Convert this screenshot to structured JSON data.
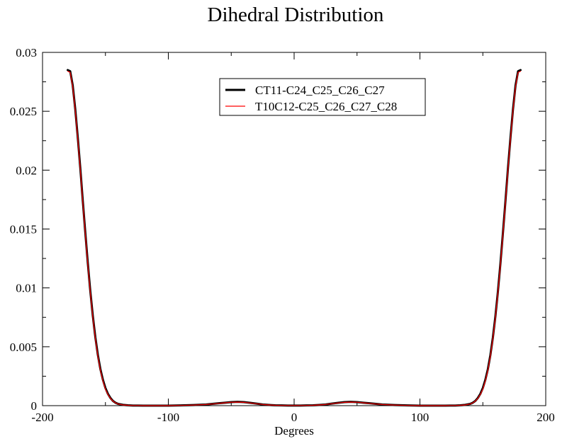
{
  "chart_data": {
    "type": "line",
    "title": "Dihedral Distribution",
    "xlabel": "Degrees",
    "ylabel": "",
    "xlim": [
      -200,
      200
    ],
    "ylim": [
      0,
      0.03
    ],
    "x_ticks": [
      -200,
      -100,
      0,
      100,
      200
    ],
    "x_tick_labels": [
      "-200",
      "-100",
      "0",
      "100",
      "200"
    ],
    "y_ticks": [
      0,
      0.005,
      0.01,
      0.015,
      0.02,
      0.025,
      0.03
    ],
    "y_tick_labels": [
      "0",
      "0.005",
      "0.01",
      "0.015",
      "0.02",
      "0.025",
      "0.03"
    ],
    "grid": false,
    "legend_position": "top-center",
    "series": [
      {
        "name": "CT11-C24_C25_C26_C27",
        "color": "#000000",
        "x": [
          -180,
          -178,
          -176,
          -174,
          -172,
          -170,
          -168,
          -166,
          -164,
          -162,
          -160,
          -158,
          -156,
          -154,
          -152,
          -150,
          -148,
          -146,
          -144,
          -142,
          -140,
          -136,
          -132,
          -128,
          -124,
          -120,
          -115,
          -110,
          -100,
          -90,
          -80,
          -70,
          -65,
          -60,
          -55,
          -50,
          -45,
          -40,
          -35,
          -30,
          -25,
          -20,
          -15,
          -10,
          -5,
          0,
          5,
          10,
          15,
          20,
          25,
          30,
          35,
          40,
          45,
          50,
          55,
          60,
          65,
          70,
          80,
          90,
          100,
          110,
          115,
          120,
          124,
          128,
          132,
          136,
          140,
          142,
          144,
          146,
          148,
          150,
          152,
          154,
          156,
          158,
          160,
          162,
          164,
          166,
          168,
          170,
          172,
          174,
          176,
          178,
          180
        ],
        "y": [
          0.0285,
          0.0284,
          0.0272,
          0.0252,
          0.0228,
          0.0202,
          0.0174,
          0.0147,
          0.0121,
          0.0097,
          0.0076,
          0.0058,
          0.0043,
          0.0031,
          0.0022,
          0.0015,
          0.001,
          0.00065,
          0.0004,
          0.00025,
          0.00015,
          7e-05,
          3e-05,
          1e-05,
          1e-05,
          0.0,
          0.0,
          0.0,
          0.0,
          2e-05,
          5e-05,
          0.0001,
          0.00015,
          0.0002,
          0.00025,
          0.0003,
          0.00032,
          0.0003,
          0.00024,
          0.00017,
          0.0001,
          6e-05,
          3e-05,
          2e-05,
          1e-05,
          1e-05,
          1e-05,
          2e-05,
          3e-05,
          6e-05,
          0.0001,
          0.00017,
          0.00024,
          0.0003,
          0.00032,
          0.0003,
          0.00025,
          0.0002,
          0.00015,
          0.0001,
          5e-05,
          2e-05,
          0.0,
          0.0,
          0.0,
          0.0,
          1e-05,
          1e-05,
          3e-05,
          7e-05,
          0.00015,
          0.00025,
          0.0004,
          0.00065,
          0.001,
          0.0015,
          0.0022,
          0.0031,
          0.0043,
          0.0058,
          0.0076,
          0.0097,
          0.0121,
          0.0147,
          0.0174,
          0.0202,
          0.0228,
          0.0252,
          0.0272,
          0.0284,
          0.0285
        ]
      },
      {
        "name": "T10C12-C25_C26_C27_C28",
        "color": "#ff0000",
        "x": [
          -180,
          -178,
          -176,
          -174,
          -172,
          -170,
          -168,
          -166,
          -164,
          -162,
          -160,
          -158,
          -156,
          -154,
          -152,
          -150,
          -148,
          -146,
          -144,
          -142,
          -140,
          -136,
          -132,
          -128,
          -124,
          -120,
          -115,
          -110,
          -100,
          -90,
          -80,
          -70,
          -65,
          -60,
          -55,
          -50,
          -45,
          -40,
          -35,
          -30,
          -25,
          -20,
          -15,
          -10,
          -5,
          0,
          5,
          10,
          15,
          20,
          25,
          30,
          35,
          40,
          45,
          50,
          55,
          60,
          65,
          70,
          80,
          90,
          100,
          110,
          115,
          120,
          124,
          128,
          132,
          136,
          140,
          142,
          144,
          146,
          148,
          150,
          152,
          154,
          156,
          158,
          160,
          162,
          164,
          166,
          168,
          170,
          172,
          174,
          176,
          178,
          180
        ],
        "y": [
          0.0284,
          0.0283,
          0.0271,
          0.0251,
          0.0227,
          0.0201,
          0.0173,
          0.0146,
          0.012,
          0.0096,
          0.0075,
          0.0057,
          0.0042,
          0.003,
          0.0021,
          0.0014,
          0.00095,
          0.00062,
          0.00038,
          0.00024,
          0.00014,
          6e-05,
          3e-05,
          1e-05,
          1e-05,
          0.0,
          0.0,
          0.0,
          0.0,
          2e-05,
          5e-05,
          0.0001,
          0.00014,
          0.00019,
          0.00024,
          0.00029,
          0.0003,
          0.00028,
          0.00023,
          0.00016,
          0.0001,
          6e-05,
          3e-05,
          2e-05,
          1e-05,
          1e-05,
          1e-05,
          2e-05,
          3e-05,
          6e-05,
          0.0001,
          0.00016,
          0.00023,
          0.00028,
          0.0003,
          0.00029,
          0.00024,
          0.00019,
          0.00014,
          0.0001,
          5e-05,
          2e-05,
          0.0,
          0.0,
          0.0,
          0.0,
          1e-05,
          1e-05,
          3e-05,
          6e-05,
          0.00014,
          0.00024,
          0.00038,
          0.00062,
          0.00095,
          0.0014,
          0.0021,
          0.003,
          0.0042,
          0.0057,
          0.0075,
          0.0096,
          0.012,
          0.0146,
          0.0173,
          0.0201,
          0.0227,
          0.0251,
          0.0271,
          0.0283,
          0.0284
        ]
      }
    ]
  }
}
